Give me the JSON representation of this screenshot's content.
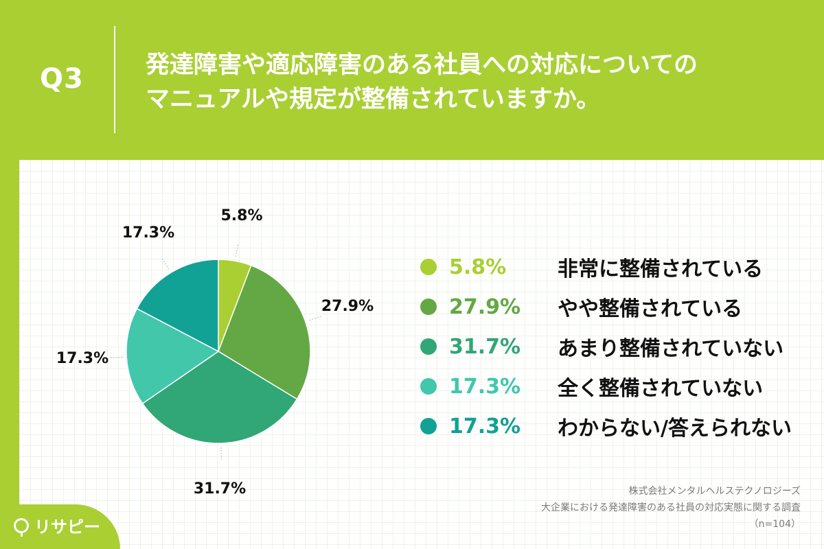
{
  "header": {
    "question_number": "Q3",
    "title_line1": "発達障害や適応障害のある社員への対応についての",
    "title_line2": "マニュアルや規定が整備されていますか。"
  },
  "chart_data": {
    "type": "pie",
    "categories": [
      "非常に整備されている",
      "やや整備されている",
      "あまり整備されていない",
      "全く整備されていない",
      "わからない/答えられない"
    ],
    "values": [
      5.8,
      27.9,
      31.7,
      17.3,
      17.3
    ],
    "value_labels": [
      "5.8%",
      "27.9%",
      "31.7%",
      "17.3%",
      "17.3%"
    ],
    "colors": [
      "#a9cf33",
      "#63a844",
      "#31a677",
      "#42c7ab",
      "#12a195"
    ],
    "start_angle_deg": 0,
    "direction": "clockwise",
    "legend_placement": "right"
  },
  "legend": {
    "items": [
      {
        "value": "5.8%",
        "label": "非常に整備されている",
        "color": "#a9cf33"
      },
      {
        "value": "27.9%",
        "label": "やや整備されている",
        "color": "#63a844"
      },
      {
        "value": "31.7%",
        "label": "あまり整備されていない",
        "color": "#31a677"
      },
      {
        "value": "17.3%",
        "label": "全く整備されていない",
        "color": "#42c7ab"
      },
      {
        "value": "17.3%",
        "label": "わからない/答えられない",
        "color": "#12a195"
      }
    ]
  },
  "source": {
    "company": "株式会社メンタルヘルステクノロジーズ",
    "survey": "大企業における発達障害のある社員の対応実態に関する調査",
    "sample": "（n=104）"
  },
  "logo": {
    "text": "リサピー",
    "icon": "pin-icon"
  }
}
